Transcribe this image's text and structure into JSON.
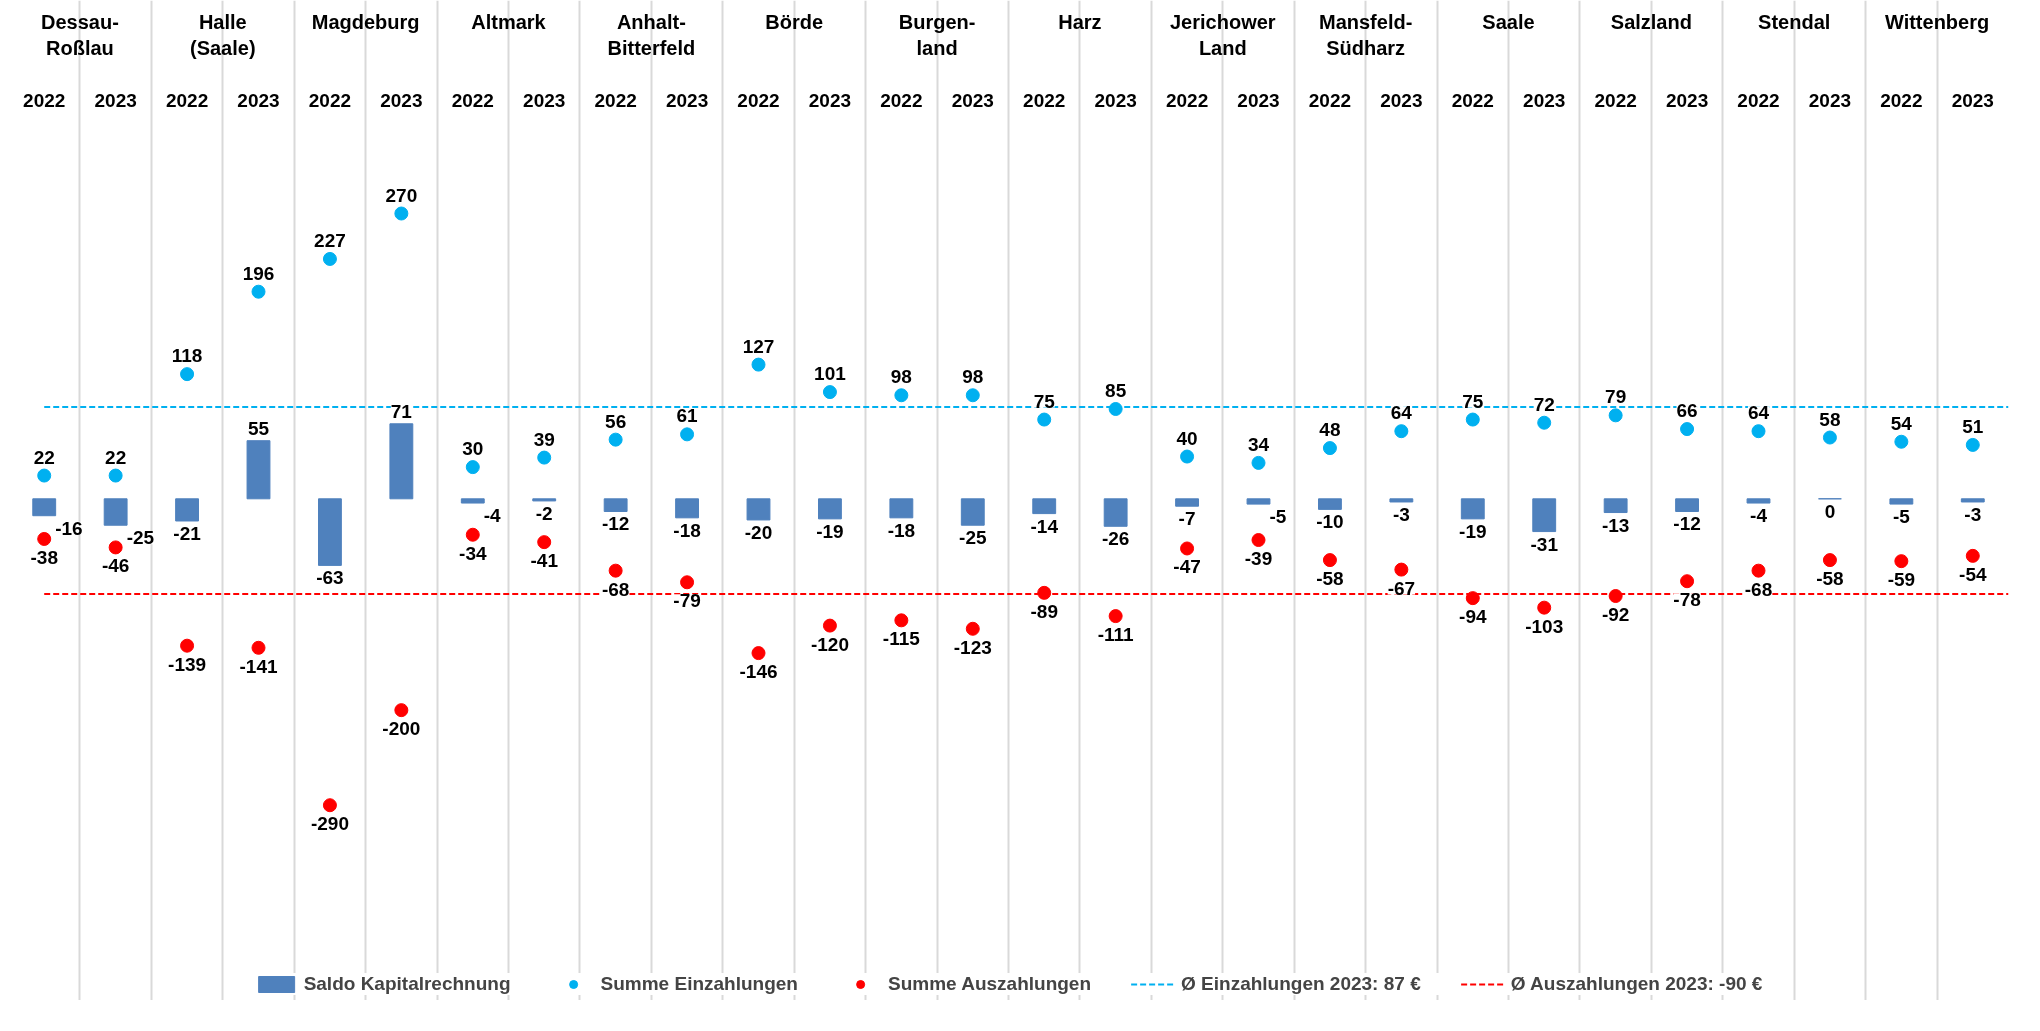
{
  "chart_data": {
    "type": "bar",
    "categories": [
      "2022",
      "2023",
      "2022",
      "2023",
      "2022",
      "2023",
      "2022",
      "2023",
      "2022",
      "2023",
      "2022",
      "2023",
      "2022",
      "2023",
      "2022",
      "2023",
      "2022",
      "2023",
      "2022",
      "2023",
      "2022",
      "2023",
      "2022",
      "2023",
      "2022",
      "2023",
      "2022",
      "2023"
    ],
    "annotations": [
      "Dessau-\nRoßlau",
      "Halle\n(Saale)",
      "Magdeburg",
      "Altmark",
      "Anhalt-\nBitterfeld",
      "Börde",
      "Burgen-\nland",
      "Harz",
      "Jerichower\nLand",
      "Mansfeld-\nSüdharz",
      "Saale",
      "Salzland",
      "Stendal",
      "Wittenberg"
    ],
    "series": [
      {
        "name": "Saldo Kapitalrechnung",
        "color": "#4f81bd",
        "values": [
          -16,
          -25,
          -21,
          55,
          -63,
          71,
          -4,
          -2,
          -12,
          -18,
          -20,
          -19,
          -18,
          -25,
          -14,
          -26,
          -7,
          -5,
          -10,
          -3,
          -19,
          -31,
          -13,
          -12,
          -4,
          0,
          -5,
          -3
        ]
      },
      {
        "name": "Summe Einzahlungen",
        "type": "scatter",
        "color": "#00b0f0",
        "values": [
          22,
          22,
          118,
          196,
          227,
          270,
          30,
          39,
          56,
          61,
          127,
          101,
          98,
          98,
          75,
          85,
          40,
          34,
          48,
          64,
          75,
          72,
          79,
          66,
          64,
          58,
          54,
          51
        ]
      },
      {
        "name": "Summe Auszahlungen",
        "type": "scatter",
        "color": "#ff0000",
        "values": [
          -38,
          -46,
          -139,
          -141,
          -290,
          -200,
          -34,
          -41,
          -68,
          -79,
          -146,
          -120,
          -115,
          -123,
          -89,
          -111,
          -47,
          -39,
          -58,
          -67,
          -94,
          -103,
          -92,
          -78,
          -68,
          -58,
          -59,
          -54
        ]
      }
    ],
    "ref_lines": [
      {
        "axis": "y",
        "value": 87,
        "label": "Ø Einzahlungen 2023: 87 €",
        "color": "#00b0f0",
        "line_style": "dashed"
      },
      {
        "axis": "y",
        "value": -90,
        "label": "Ø Auszahlungen 2023: -90 €",
        "color": "#ff0000",
        "line_style": "dashed"
      }
    ],
    "data_labels": true,
    "grid": "x",
    "legend": "bottom",
    "marker": "circle"
  }
}
